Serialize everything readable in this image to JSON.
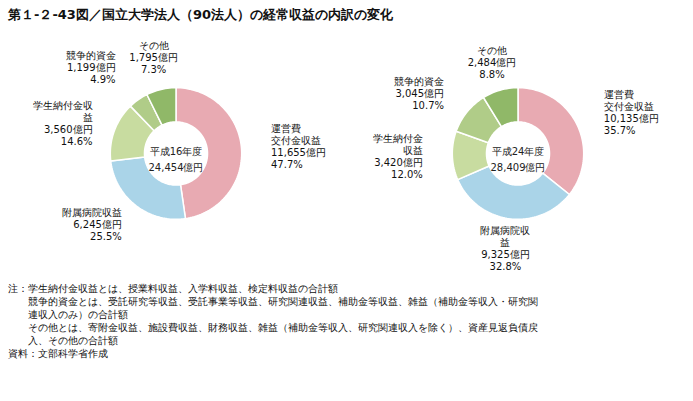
{
  "title": "第１-２-43図／国立大学法人（90法人）の経常収益の内訳の変化",
  "notes": [
    "注：学生納付金収益とは、授業料収益、入学料収益、検定料収益の合計額",
    "　　競争的資金とは、受託研究等収益、受託事業等収益、研究関連収益、補助金等収益、雑益（補助金等収入・研究関",
    "　　連収入のみ）の合計額",
    "　　その他とは、寄附金収益、施設費収益、財務収益、雑益（補助金等収入、研究関連収入を除く）、資産見返負債戻",
    "　　入、その他の合計額",
    "資料：文部科学省作成"
  ],
  "chart_data": [
    {
      "type": "pie",
      "center_labels": [
        "平成16年度",
        "24,454億円"
      ],
      "categories": [
        "運営費\n交付金収益",
        "附属病院収益",
        "学生納付金収\n益",
        "競争的資金",
        "その他"
      ],
      "values": [
        47.7,
        25.5,
        14.6,
        4.9,
        7.3
      ],
      "value_labels": [
        "47.7%",
        "25.5%",
        "14.6%",
        "4.9%",
        "7.3%"
      ],
      "amounts": [
        "11,655億円",
        "6,245億円",
        "3,560億円",
        "1,199億円",
        "1,795億円"
      ],
      "colors": [
        "#e8aab2",
        "#aad4e8",
        "#c8dca0",
        "#b0cc88",
        "#90b868"
      ],
      "data_labels": true
    },
    {
      "type": "pie",
      "center_labels": [
        "平成24年度",
        "28,409億円"
      ],
      "categories": [
        "運営費\n交付金収益",
        "附属病院収\n益",
        "学生納付金\n収益",
        "競争的資金",
        "その他"
      ],
      "values": [
        35.7,
        32.8,
        12.0,
        10.7,
        8.8
      ],
      "value_labels": [
        "35.7%",
        "32.8%",
        "12.0%",
        "10.7%",
        "8.8%"
      ],
      "amounts": [
        "10,135億円",
        "9,325億円",
        "3,420億円",
        "3,045億円",
        "2,484億円"
      ],
      "colors": [
        "#e8aab2",
        "#aad4e8",
        "#c8dca0",
        "#b0cc88",
        "#90b868"
      ],
      "data_labels": true
    }
  ]
}
